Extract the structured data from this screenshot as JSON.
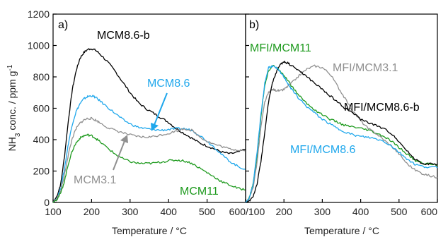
{
  "chart_data": [
    {
      "type": "line",
      "panel_label": "a)",
      "xlabel": "Temperature / °C",
      "ylabel": "NH3 conc. / ppm g-1",
      "xlim": [
        100,
        600
      ],
      "ylim": [
        0,
        1200
      ],
      "xticks": [
        100,
        200,
        300,
        400,
        500,
        600
      ],
      "yticks": [
        0,
        200,
        400,
        600,
        800,
        1000,
        1200
      ],
      "grid": false,
      "series": [
        {
          "name": "MCM8.6-b",
          "color": "#000000",
          "x": [
            100,
            110,
            120,
            130,
            140,
            150,
            160,
            170,
            180,
            190,
            200,
            210,
            220,
            240,
            260,
            280,
            300,
            320,
            340,
            360,
            380,
            400,
            420,
            440,
            460,
            480,
            500,
            520,
            540,
            560,
            580,
            600
          ],
          "y": [
            0,
            40,
            120,
            300,
            530,
            720,
            840,
            920,
            955,
            975,
            980,
            970,
            950,
            900,
            840,
            770,
            700,
            640,
            600,
            570,
            540,
            510,
            470,
            440,
            410,
            380,
            360,
            340,
            320,
            310,
            320,
            340
          ]
        },
        {
          "name": "MCM8.6",
          "color": "#1ea7ec",
          "x": [
            100,
            110,
            120,
            130,
            140,
            150,
            160,
            170,
            180,
            190,
            200,
            210,
            220,
            240,
            260,
            280,
            300,
            320,
            340,
            360,
            380,
            400,
            420,
            440,
            460,
            480,
            500,
            520,
            540,
            560,
            580,
            600
          ],
          "y": [
            0,
            30,
            90,
            220,
            380,
            500,
            580,
            630,
            660,
            675,
            680,
            670,
            650,
            610,
            570,
            530,
            500,
            480,
            470,
            465,
            460,
            465,
            470,
            470,
            460,
            430,
            390,
            350,
            300,
            260,
            230,
            210
          ]
        },
        {
          "name": "MCM3.1",
          "color": "#909090",
          "x": [
            100,
            110,
            120,
            130,
            140,
            150,
            160,
            170,
            180,
            190,
            200,
            210,
            220,
            240,
            260,
            280,
            300,
            320,
            340,
            360,
            380,
            400,
            420,
            440,
            460,
            480,
            500,
            520,
            540,
            560,
            580,
            600
          ],
          "y": [
            0,
            25,
            75,
            180,
            310,
            410,
            470,
            505,
            525,
            535,
            535,
            525,
            510,
            480,
            460,
            445,
            430,
            420,
            415,
            420,
            430,
            440,
            455,
            470,
            460,
            420,
            390,
            370,
            355,
            340,
            335,
            330
          ]
        },
        {
          "name": "MCM11",
          "color": "#1e9a1e",
          "x": [
            100,
            110,
            120,
            130,
            140,
            150,
            160,
            170,
            180,
            190,
            200,
            210,
            220,
            240,
            260,
            280,
            300,
            320,
            340,
            360,
            380,
            400,
            420,
            440,
            460,
            480,
            500,
            520,
            540,
            560,
            580,
            600
          ],
          "y": [
            0,
            20,
            60,
            140,
            250,
            330,
            380,
            410,
            425,
            430,
            425,
            410,
            390,
            350,
            310,
            280,
            260,
            250,
            248,
            250,
            258,
            265,
            270,
            265,
            250,
            220,
            190,
            160,
            130,
            110,
            90,
            80
          ]
        }
      ]
    },
    {
      "type": "line",
      "panel_label": "b)",
      "xlabel": "Temperature / °C",
      "ylabel": "",
      "xlim": [
        100,
        600
      ],
      "ylim": [
        0,
        1200
      ],
      "xticks": [
        100,
        200,
        300,
        400,
        500,
        600
      ],
      "yticks": [
        0,
        200,
        400,
        600,
        800,
        1000,
        1200
      ],
      "grid": false,
      "series": [
        {
          "name": "MFI/MCM11",
          "color": "#1e9a1e",
          "x": [
            100,
            110,
            120,
            130,
            140,
            150,
            160,
            170,
            180,
            190,
            200,
            210,
            220,
            240,
            260,
            280,
            300,
            320,
            340,
            360,
            380,
            400,
            420,
            440,
            460,
            480,
            500,
            520,
            540,
            560,
            580,
            600
          ],
          "y": [
            0,
            30,
            120,
            300,
            550,
            750,
            840,
            870,
            860,
            840,
            810,
            780,
            740,
            680,
            630,
            590,
            560,
            530,
            510,
            490,
            480,
            470,
            460,
            440,
            420,
            390,
            350,
            310,
            270,
            250,
            245,
            240
          ]
        },
        {
          "name": "MFI/MCM3.1",
          "color": "#909090",
          "x": [
            100,
            110,
            120,
            130,
            140,
            150,
            160,
            170,
            180,
            190,
            200,
            210,
            220,
            240,
            260,
            280,
            300,
            320,
            340,
            360,
            380,
            400,
            420,
            440,
            460,
            480,
            500,
            520,
            540,
            560,
            580,
            600
          ],
          "y": [
            0,
            25,
            100,
            260,
            480,
            640,
            700,
            720,
            715,
            710,
            720,
            740,
            760,
            810,
            850,
            870,
            860,
            820,
            740,
            660,
            580,
            520,
            470,
            440,
            400,
            360,
            310,
            250,
            210,
            185,
            170,
            160
          ]
        },
        {
          "name": "MFI/MCM8.6-b",
          "color": "#000000",
          "x": [
            100,
            110,
            120,
            130,
            140,
            150,
            160,
            170,
            180,
            190,
            200,
            210,
            220,
            240,
            260,
            280,
            300,
            320,
            340,
            360,
            380,
            400,
            420,
            440,
            460,
            480,
            500,
            520,
            540,
            560,
            580,
            600
          ],
          "y": [
            0,
            10,
            40,
            120,
            260,
            450,
            640,
            760,
            830,
            880,
            895,
            890,
            870,
            840,
            800,
            760,
            720,
            680,
            640,
            600,
            570,
            530,
            510,
            490,
            470,
            440,
            390,
            330,
            280,
            250,
            245,
            245
          ]
        },
        {
          "name": "MFI/MCM8.6",
          "color": "#1ea7ec",
          "x": [
            100,
            110,
            120,
            130,
            140,
            150,
            160,
            170,
            180,
            190,
            200,
            210,
            220,
            240,
            260,
            280,
            300,
            320,
            340,
            360,
            380,
            400,
            420,
            440,
            460,
            480,
            500,
            520,
            540,
            560,
            580,
            600
          ],
          "y": [
            0,
            30,
            120,
            320,
            560,
            760,
            860,
            870,
            855,
            830,
            800,
            760,
            720,
            660,
            610,
            570,
            530,
            500,
            470,
            450,
            430,
            420,
            415,
            405,
            390,
            360,
            320,
            280,
            245,
            230,
            225,
            220
          ]
        }
      ]
    }
  ],
  "labels": {
    "a": {
      "letter": "a)",
      "mcm86b": "MCM8.6-b",
      "mcm86": "MCM8.6",
      "mcm31": "MCM3.1",
      "mcm11": "MCM11"
    },
    "b": {
      "letter": "b)",
      "mfi11": "MFI/MCM11",
      "mfi31": "MFI/MCM3.1",
      "mfi86b": "MFI/MCM8.6-b",
      "mfi86": "MFI/MCM8.6"
    }
  },
  "axes": {
    "ylabel_main": "NH",
    "ylabel_sub": "3",
    "ylabel_rest": " conc. / ppm g",
    "ylabel_sup": "-1",
    "xlabel_a": "Temperature / °C",
    "xlabel_b": "Temperature / °C"
  },
  "colors": {
    "black": "#000000",
    "blue": "#1ea7ec",
    "gray": "#909090",
    "green": "#1e9a1e"
  }
}
